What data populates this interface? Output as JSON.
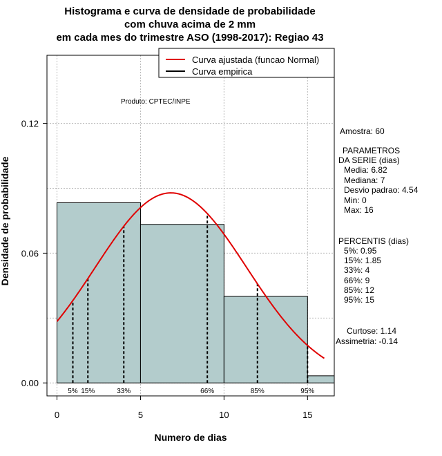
{
  "chart_data": {
    "type": "bar",
    "title_lines": [
      "Histograma e curva de densidade de probabilidade",
      "com chuva acima de 2 mm",
      "em cada mes do trimestre ASO (1998-2017): Regiao 43"
    ],
    "xlabel": "Numero de dias",
    "ylabel": "Densidade de probabilidade",
    "xlim": [
      -0.6,
      16.6
    ],
    "ylim": [
      -0.006,
      0.1515
    ],
    "x_ticks": [
      0,
      5,
      10,
      15
    ],
    "y_ticks": [
      0.0,
      0.06,
      0.12
    ],
    "y_tick_labels": [
      "0.00",
      "0.06",
      "0.12"
    ],
    "grid_x": [
      0,
      5,
      10,
      15
    ],
    "grid_y": [
      0.0,
      0.06,
      0.12
    ],
    "histogram": {
      "bins": [
        [
          0,
          5
        ],
        [
          5,
          10
        ],
        [
          10,
          15
        ],
        [
          15,
          20
        ]
      ],
      "densities": [
        0.0833,
        0.0733,
        0.04,
        0.0033
      ],
      "fill": "#b3cccc"
    },
    "normal_curve": {
      "name": "Curva ajustada (funcao Normal)",
      "mean": 6.82,
      "sd": 4.54,
      "x_range": [
        0,
        16
      ],
      "color": "#e00000"
    },
    "empirical_curve": {
      "name": "Curva empirica",
      "color": "#000000"
    },
    "percentiles": [
      {
        "label": "5%",
        "value": 0.95
      },
      {
        "label": "15%",
        "value": 1.85
      },
      {
        "label": "33%",
        "value": 4
      },
      {
        "label": "66%",
        "value": 9
      },
      {
        "label": "85%",
        "value": 12
      },
      {
        "label": "95%",
        "value": 15
      }
    ],
    "legend_position": "top-right",
    "produto": "Produto: CPTEC/INPE"
  },
  "side_panel": {
    "amostra": "Amostra: 60",
    "parametros_title1": "PARAMETROS",
    "parametros_title2": "DA SERIE (dias)",
    "media": "Media: 6.82",
    "mediana": "Mediana: 7",
    "desvio": "Desvio padrao: 4.54",
    "min": "Min: 0",
    "max": "Max: 16",
    "percentis_title": "PERCENTIS (dias)",
    "p5": "5%: 0.95",
    "p15": "15%: 1.85",
    "p33": "33%: 4",
    "p66": "66%: 9",
    "p85": "85%: 12",
    "p95": "95%: 15",
    "curtose": "Curtose: 1.14",
    "assimetria": "Assimetria: -0.14"
  }
}
